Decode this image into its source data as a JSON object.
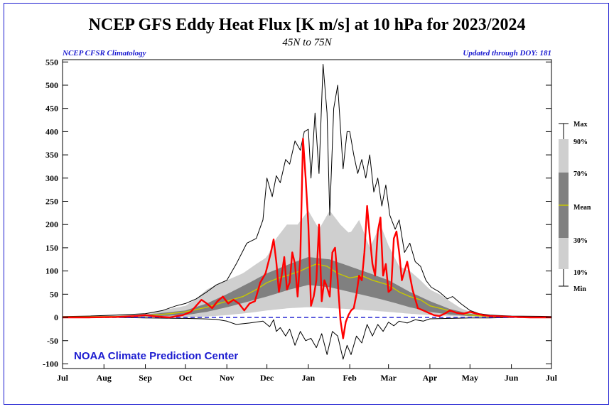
{
  "chart_data": {
    "type": "line",
    "title": "NCEP GFS Eddy Heat Flux [K m/s] at 10 hPa for 2023/2024",
    "subtitle": "45N to 75N",
    "note_left": "NCEP CFSR Climatology",
    "note_right": "Updated through DOY: 181",
    "credit": "NOAA Climate Prediction Center",
    "x_unit": "day since Jul 1",
    "xlim": [
      0,
      366
    ],
    "ylim": [
      -110,
      555
    ],
    "x_ticks": [
      {
        "label": "Jul",
        "day": 0
      },
      {
        "label": "Aug",
        "day": 31
      },
      {
        "label": "Sep",
        "day": 62
      },
      {
        "label": "Oct",
        "day": 92
      },
      {
        "label": "Nov",
        "day": 123
      },
      {
        "label": "Dec",
        "day": 153
      },
      {
        "label": "Jan",
        "day": 184
      },
      {
        "label": "Feb",
        "day": 215
      },
      {
        "label": "Mar",
        "day": 244
      },
      {
        "label": "Apr",
        "day": 275
      },
      {
        "label": "May",
        "day": 305
      },
      {
        "label": "Jun",
        "day": 336
      },
      {
        "label": "Jul",
        "day": 366
      }
    ],
    "y_ticks": [
      550,
      500,
      450,
      400,
      350,
      300,
      250,
      200,
      150,
      100,
      50,
      0,
      -50,
      -100
    ],
    "legend": {
      "labels": [
        "Max",
        "90%",
        "70%",
        "Mean",
        "30%",
        "10%",
        "Min"
      ],
      "colors": {
        "light": "#cfcfcf",
        "dark": "#808080",
        "mean": "#c8c800"
      }
    },
    "colors": {
      "current": "#ff0000",
      "min_max": "#000000",
      "zero_line": "#1b1bd0",
      "band_10_90": "#cfcfcf",
      "band_30_70": "#808080",
      "mean": "#c8c800"
    },
    "series": [
      {
        "name": "Max",
        "x": [
          0,
          20,
          40,
          62,
          75,
          85,
          92,
          100,
          108,
          115,
          123,
          130,
          138,
          145,
          150,
          153,
          157,
          160,
          163,
          167,
          170,
          174,
          178,
          181,
          184,
          186,
          189,
          192,
          195,
          198,
          200,
          203,
          206,
          210,
          213,
          215,
          218,
          221,
          224,
          227,
          230,
          233,
          236,
          239,
          242,
          245,
          249,
          252,
          256,
          260,
          264,
          268,
          272,
          276,
          282,
          288,
          292,
          298,
          305,
          312,
          320,
          336,
          366
        ],
        "y": [
          2,
          3,
          5,
          8,
          15,
          25,
          30,
          40,
          55,
          70,
          80,
          115,
          160,
          170,
          210,
          300,
          260,
          305,
          290,
          340,
          330,
          380,
          360,
          400,
          405,
          300,
          440,
          310,
          545,
          440,
          220,
          450,
          500,
          320,
          400,
          400,
          350,
          310,
          340,
          300,
          350,
          270,
          300,
          240,
          285,
          220,
          190,
          210,
          140,
          160,
          120,
          110,
          80,
          65,
          55,
          40,
          45,
          30,
          15,
          8,
          5,
          3,
          2
        ]
      },
      {
        "name": "Min",
        "x": [
          0,
          40,
          62,
          92,
          105,
          115,
          123,
          130,
          140,
          150,
          155,
          158,
          160,
          163,
          167,
          170,
          174,
          178,
          182,
          186,
          190,
          194,
          198,
          202,
          206,
          210,
          213,
          216,
          220,
          224,
          228,
          232,
          236,
          240,
          244,
          248,
          252,
          258,
          264,
          270,
          275,
          290,
          305,
          320,
          336,
          366
        ],
        "y": [
          0,
          0,
          -1,
          -2,
          -3,
          -4,
          -8,
          -15,
          -12,
          -8,
          -20,
          -5,
          -30,
          -22,
          -40,
          -25,
          -60,
          -30,
          -50,
          -45,
          -65,
          -35,
          -80,
          -30,
          -40,
          -90,
          -60,
          -80,
          -40,
          -55,
          -15,
          -40,
          -15,
          -30,
          -10,
          -18,
          -8,
          -12,
          -5,
          -8,
          -3,
          -2,
          -1,
          -1,
          0,
          0
        ]
      },
      {
        "name": "10%",
        "x": [
          0,
          40,
          62,
          92,
          108,
          123,
          140,
          153,
          170,
          184,
          200,
          215,
          230,
          244,
          260,
          275,
          290,
          305,
          320,
          336,
          366
        ],
        "y": [
          0,
          0,
          0,
          0,
          2,
          5,
          10,
          15,
          20,
          22,
          20,
          18,
          15,
          12,
          8,
          5,
          3,
          2,
          1,
          0,
          0
        ]
      },
      {
        "name": "30%",
        "x": [
          0,
          40,
          62,
          92,
          108,
          123,
          140,
          153,
          170,
          184,
          200,
          215,
          230,
          244,
          260,
          275,
          290,
          305,
          320,
          336,
          366
        ],
        "y": [
          0,
          1,
          2,
          5,
          12,
          22,
          35,
          45,
          60,
          70,
          65,
          55,
          45,
          35,
          22,
          12,
          6,
          3,
          1,
          0,
          0
        ]
      },
      {
        "name": "Mean",
        "x": [
          0,
          40,
          62,
          80,
          92,
          108,
          123,
          135,
          145,
          153,
          162,
          170,
          178,
          184,
          190,
          198,
          206,
          215,
          224,
          232,
          244,
          252,
          260,
          268,
          275,
          285,
          295,
          305,
          320,
          336,
          366
        ],
        "y": [
          1,
          2,
          4,
          8,
          12,
          22,
          35,
          45,
          60,
          75,
          85,
          92,
          100,
          108,
          115,
          110,
          95,
          85,
          90,
          80,
          70,
          55,
          45,
          38,
          25,
          18,
          10,
          5,
          2,
          1,
          0
        ]
      },
      {
        "name": "70%",
        "x": [
          0,
          40,
          62,
          92,
          108,
          123,
          140,
          153,
          170,
          184,
          200,
          215,
          230,
          244,
          260,
          275,
          290,
          305,
          320,
          336,
          366
        ],
        "y": [
          2,
          3,
          6,
          15,
          30,
          50,
          75,
          95,
          115,
          130,
          125,
          110,
          95,
          80,
          55,
          35,
          18,
          8,
          3,
          1,
          0
        ]
      },
      {
        "name": "90%",
        "x": [
          0,
          40,
          62,
          92,
          100,
          108,
          115,
          123,
          135,
          145,
          153,
          160,
          168,
          176,
          184,
          192,
          200,
          208,
          215,
          222,
          230,
          238,
          244,
          252,
          260,
          268,
          275,
          282,
          290,
          298,
          305,
          320,
          336,
          366
        ],
        "y": [
          2,
          4,
          8,
          25,
          40,
          60,
          70,
          80,
          95,
          115,
          130,
          170,
          200,
          200,
          230,
          190,
          230,
          200,
          180,
          210,
          150,
          200,
          155,
          110,
          100,
          80,
          60,
          50,
          35,
          20,
          12,
          5,
          2,
          1
        ]
      },
      {
        "name": "2023/2024",
        "x": [
          0,
          20,
          40,
          55,
          62,
          70,
          80,
          90,
          96,
          100,
          104,
          108,
          112,
          116,
          120,
          124,
          128,
          132,
          136,
          140,
          144,
          148,
          152,
          156,
          158,
          160,
          162,
          164,
          166,
          168,
          170,
          172,
          174,
          176,
          178,
          180,
          182,
          184,
          186,
          188,
          190,
          192,
          194,
          196,
          198,
          200,
          202,
          204,
          206,
          208,
          210,
          212,
          214,
          216,
          218,
          220,
          222,
          224,
          226,
          228,
          230,
          232,
          234,
          236,
          238,
          240,
          242,
          244,
          246,
          248,
          250,
          252,
          254,
          258,
          262,
          266,
          270,
          274,
          278,
          282,
          286,
          290,
          295,
          300,
          305,
          310,
          315,
          320,
          330,
          340,
          350,
          366
        ],
        "y": [
          0,
          0,
          1,
          3,
          5,
          2,
          0,
          5,
          12,
          25,
          38,
          30,
          20,
          35,
          45,
          30,
          38,
          30,
          15,
          30,
          35,
          75,
          95,
          140,
          168,
          120,
          55,
          90,
          130,
          60,
          75,
          140,
          115,
          45,
          130,
          385,
          300,
          200,
          25,
          45,
          80,
          200,
          35,
          80,
          65,
          45,
          140,
          150,
          80,
          -5,
          -45,
          -10,
          5,
          15,
          20,
          50,
          90,
          80,
          140,
          240,
          175,
          115,
          90,
          185,
          215,
          90,
          115,
          55,
          60,
          170,
          185,
          140,
          80,
          120,
          60,
          20,
          15,
          10,
          5,
          3,
          8,
          15,
          10,
          8,
          12,
          8,
          5,
          3,
          2,
          1,
          0,
          0
        ]
      }
    ]
  }
}
